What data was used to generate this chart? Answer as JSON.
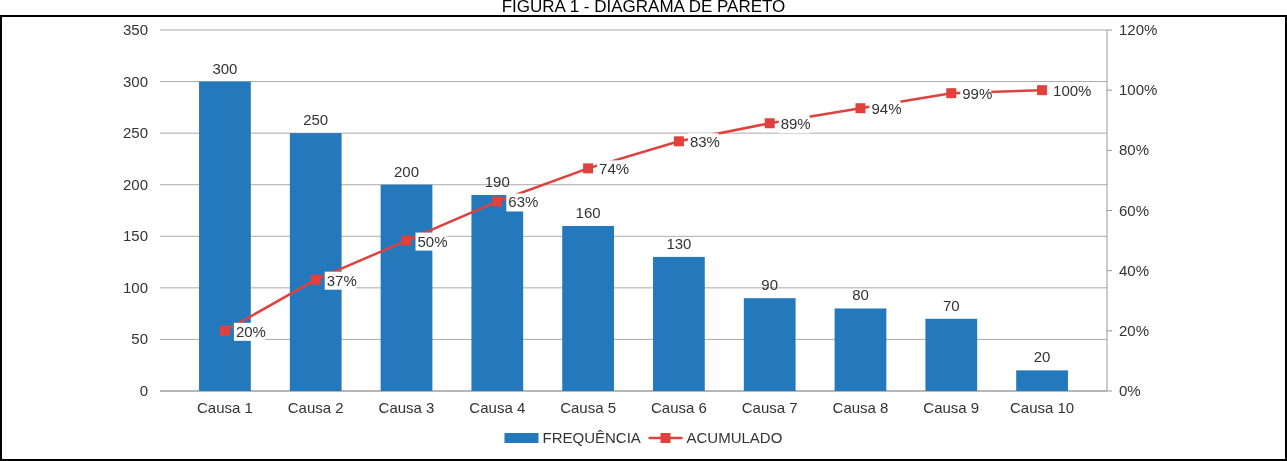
{
  "chart_data": {
    "type": "bar",
    "title": "FIGURA 1 - DIAGRAMA DE PARETO",
    "categories": [
      "Causa 1",
      "Causa 2",
      "Causa 3",
      "Causa 4",
      "Causa 5",
      "Causa 6",
      "Causa 7",
      "Causa 8",
      "Causa 9",
      "Causa 10"
    ],
    "series": [
      {
        "name": "FREQUÊNCIA",
        "color": "#2479bd",
        "values": [
          300,
          250,
          200,
          190,
          160,
          130,
          90,
          80,
          70,
          20
        ],
        "value_labels": [
          "300",
          "250",
          "200",
          "190",
          "160",
          "130",
          "90",
          "80",
          "70",
          "20"
        ]
      },
      {
        "name": "ACUMULADO",
        "type": "line",
        "axis": "y2",
        "color": "#e0413c",
        "marker": "square",
        "values": [
          20,
          37,
          50,
          63,
          74,
          83,
          89,
          94,
          99,
          100
        ],
        "value_labels": [
          "20%",
          "37%",
          "50%",
          "63%",
          "74%",
          "83%",
          "89%",
          "94%",
          "99%",
          "100%"
        ]
      }
    ],
    "ylim": [
      0,
      350
    ],
    "yticks": [
      0,
      50,
      100,
      150,
      200,
      250,
      300,
      350
    ],
    "y2lim": [
      0,
      120
    ],
    "y2ticks": [
      {
        "value": 0,
        "label": "0%"
      },
      {
        "value": 20,
        "label": "20%"
      },
      {
        "value": 40,
        "label": "40%"
      },
      {
        "value": 60,
        "label": "60%"
      },
      {
        "value": 80,
        "label": "80%"
      },
      {
        "value": 100,
        "label": "100%"
      },
      {
        "value": 120,
        "label": "120%"
      }
    ],
    "grid": "y",
    "legend": "bottom"
  }
}
